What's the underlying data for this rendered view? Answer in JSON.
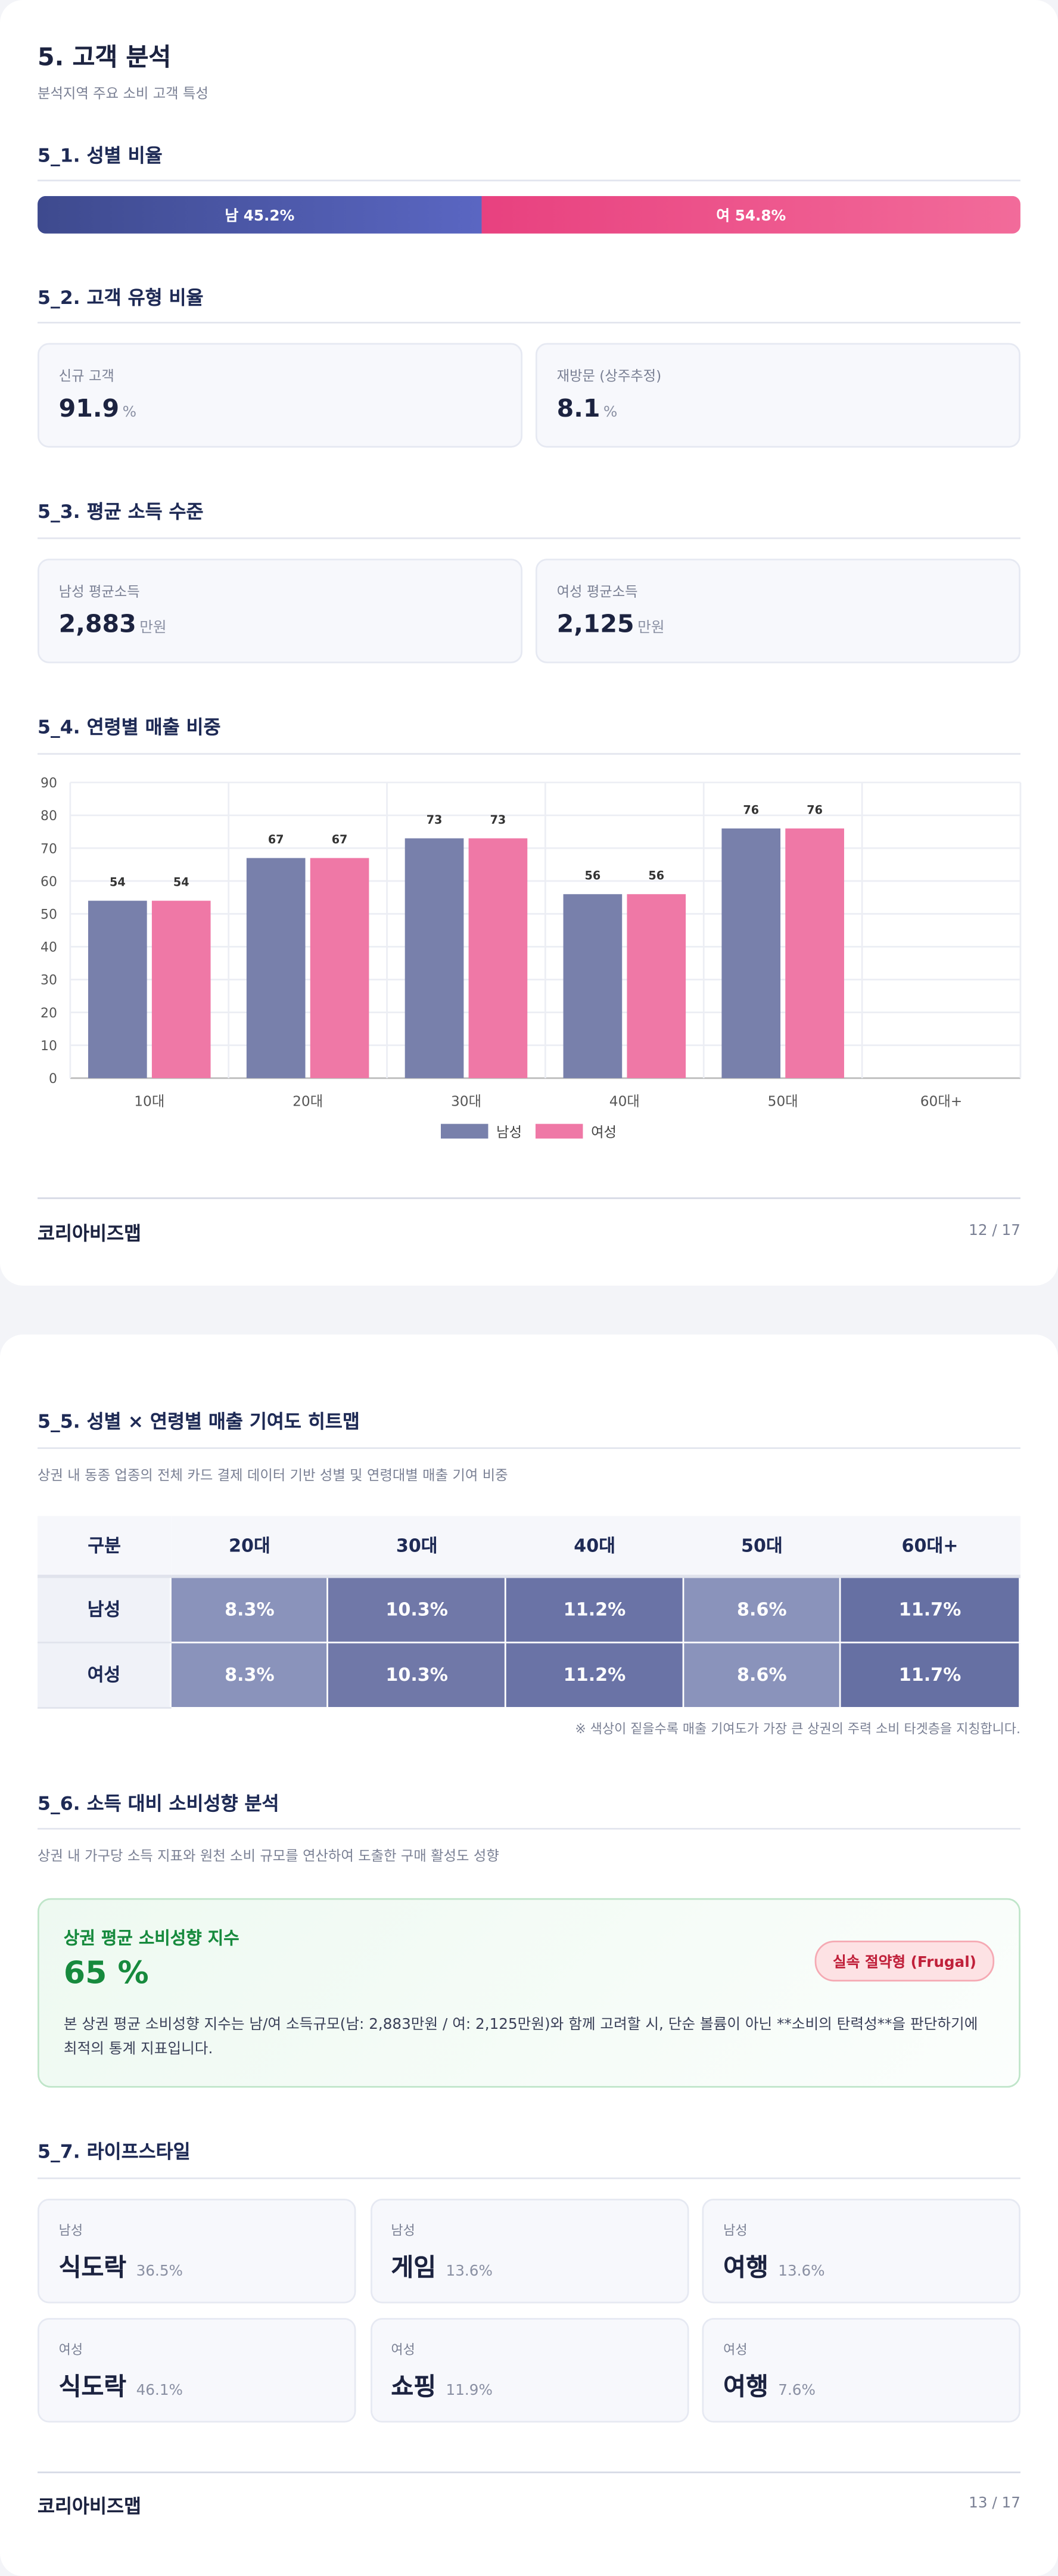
{
  "page1": {
    "title": "5. 고객 분석",
    "subtitle": "분석지역 주요 소비 고객 특성",
    "gender": {
      "heading": "5_1. 성별 비율",
      "male": {
        "label": "남 45.2%",
        "value": 45.2
      },
      "female": {
        "label": "여 54.8%",
        "value": 54.8
      }
    },
    "customer_type": {
      "heading": "5_2. 고객 유형 비율",
      "cards": [
        {
          "label": "신규 고객",
          "value": "91.9",
          "unit": "%"
        },
        {
          "label": "재방문 (상주추정)",
          "value": "8.1",
          "unit": "%"
        }
      ]
    },
    "income": {
      "heading": "5_3. 평균 소득 수준",
      "cards": [
        {
          "label": "남성 평균소득",
          "value": "2,883",
          "unit": "만원"
        },
        {
          "label": "여성 평균소득",
          "value": "2,125",
          "unit": "만원"
        }
      ]
    },
    "age_sales": {
      "heading": "5_4. 연령별 매출 비중"
    },
    "footer": {
      "brand": "코리아비즈맵",
      "page": "12 / 17"
    }
  },
  "chart_data": {
    "type": "bar",
    "categories": [
      "10대",
      "20대",
      "30대",
      "40대",
      "50대",
      "60대+"
    ],
    "series": [
      {
        "name": "남성",
        "color": "#7880ab",
        "values": [
          54,
          67,
          73,
          56,
          76,
          null
        ]
      },
      {
        "name": "여성",
        "color": "#ef78a6",
        "values": [
          54,
          67,
          73,
          56,
          76,
          null
        ]
      }
    ],
    "ylim": [
      0,
      90
    ],
    "yticks": [
      0,
      10,
      20,
      30,
      40,
      50,
      60,
      70,
      80,
      90
    ],
    "grid": true,
    "legend": "bottom"
  },
  "page2": {
    "heatmap": {
      "heading": "5_5. 성별 × 연령별 매출 기여도 히트맵",
      "description": "상권 내 동종 업종의 전체 카드 결제 데이터 기반 성별 및 연령대별 매출 기여 비중",
      "table": {
        "header": [
          "구분",
          "20대",
          "30대",
          "40대",
          "50대",
          "60대+"
        ],
        "rows": [
          [
            "남성",
            "8.3%",
            "10.3%",
            "11.2%",
            "8.6%",
            "11.7%"
          ],
          [
            "여성",
            "8.3%",
            "10.3%",
            "11.2%",
            "8.6%",
            "11.7%"
          ]
        ]
      },
      "note": "※ 색상이 짙을수록 매출 기여도가 가장 큰 상권의 주력 소비 타겟층을 지칭합니다."
    },
    "propensity": {
      "heading": "5_6. 소득 대비 소비성향 분석",
      "description": "상권 내 가구당 소득 지표와 원천 소비 규모를 연산하여 도출한 구매 활성도 성향",
      "label": "상권 평균 소비성향 지수",
      "value": "65 %",
      "badge": "실속 절약형 (Frugal)",
      "text": "본 상권 평균 소비성향 지수는 남/여 소득규모(남: 2,883만원 / 여: 2,125만원)와 함께 고려할 시, 단순 볼륨이 아닌 **소비의 탄력성**을 판단하기에 최적의 통계 지표입니다."
    },
    "lifestyle": {
      "heading": "5_7. 라이프스타일",
      "cards": [
        {
          "gender": "남성",
          "name": "식도락",
          "value": "36.5%"
        },
        {
          "gender": "남성",
          "name": "게임",
          "value": "13.6%"
        },
        {
          "gender": "남성",
          "name": "여행",
          "value": "13.6%"
        },
        {
          "gender": "여성",
          "name": "식도락",
          "value": "46.1%"
        },
        {
          "gender": "여성",
          "name": "쇼핑",
          "value": "11.9%"
        },
        {
          "gender": "여성",
          "name": "여행",
          "value": "7.6%"
        }
      ]
    },
    "footer": {
      "brand": "코리아비즈맵",
      "page": "13 / 17"
    }
  }
}
